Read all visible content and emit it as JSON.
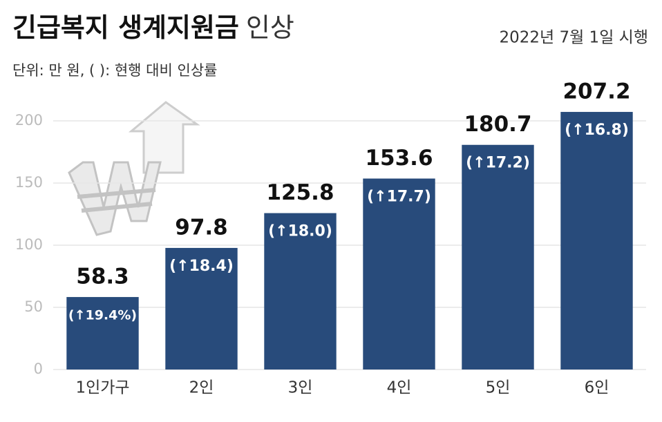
{
  "chart_data": {
    "type": "bar",
    "title": {
      "main": "긴급복지 생계지원금",
      "suffix": "인상"
    },
    "subtitle": "단위: 만 원, ( ): 현행 대비 인상률",
    "note": "2022년 7월 1일 시행",
    "categories": [
      "1인가구",
      "2인",
      "3인",
      "4인",
      "5인",
      "6인"
    ],
    "values": [
      58.3,
      97.8,
      125.8,
      153.6,
      180.7,
      207.2
    ],
    "rate_labels": [
      "(↑19.4%)",
      "(↑18.4)",
      "(↑18.0)",
      "(↑17.7)",
      "(↑17.2)",
      "(↑16.8)"
    ],
    "color": "#284b7b",
    "ylim": [
      0,
      215
    ],
    "yticks": [
      0,
      50,
      100,
      150,
      200
    ],
    "grid": true
  }
}
